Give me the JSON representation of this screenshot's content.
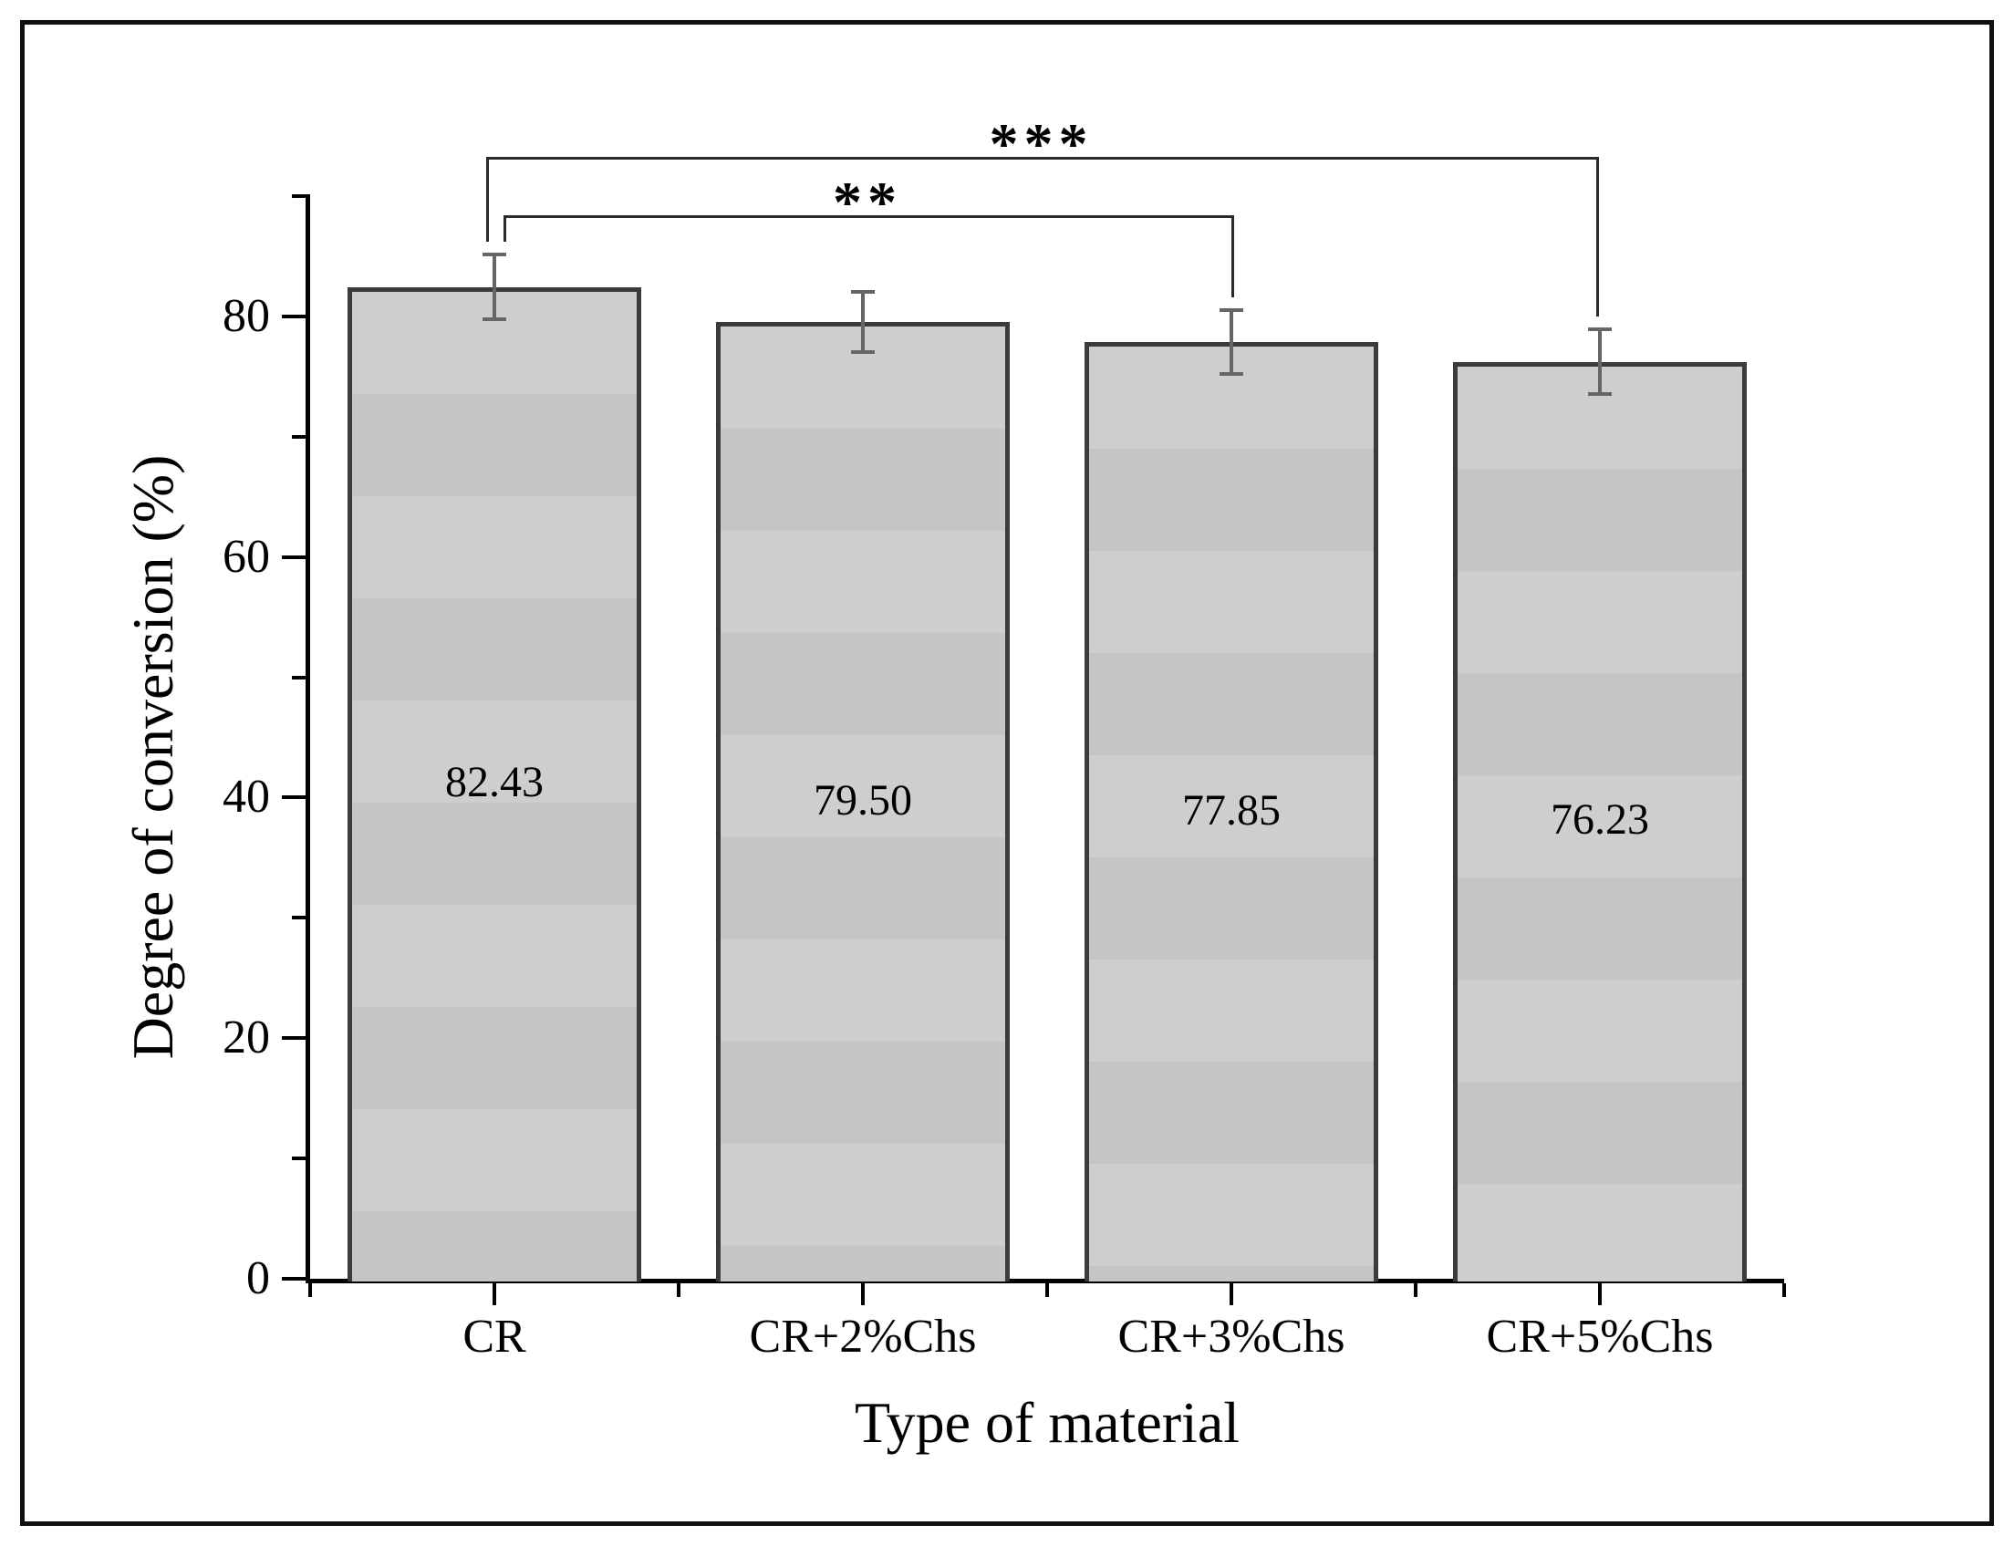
{
  "figure": {
    "background": "#ffffff",
    "border_color": "#101010"
  },
  "chart_data": {
    "type": "bar",
    "title": "",
    "xlabel": "Type of material",
    "ylabel": "Degree of conversion (%)",
    "categories": [
      "CR",
      "CR+2%Chs",
      "CR+3%Chs",
      "CR+5%Chs"
    ],
    "values": [
      82.43,
      79.5,
      77.85,
      76.23
    ],
    "value_labels": [
      "82.43",
      "79.50",
      "77.85",
      "76.23"
    ],
    "errors": [
      2.7,
      2.5,
      2.65,
      2.7
    ],
    "ylim": [
      0,
      90
    ],
    "y_major_ticks": [
      0,
      20,
      40,
      60,
      80
    ],
    "y_major_tick_labels": [
      "0",
      "20",
      "40",
      "60",
      "80"
    ],
    "y_minor_ticks": [
      10,
      30,
      50,
      70,
      90
    ],
    "grid": false,
    "legend_position": "none",
    "bar_fill": "#cecece",
    "bar_fill_alt": "#c5c5c5",
    "bar_border": "#3b3b3b",
    "error_color": "#666666",
    "annotations": [
      {
        "label": "**",
        "from": 0,
        "to": 2
      },
      {
        "label": "***",
        "from": 0,
        "to": 3
      }
    ]
  }
}
